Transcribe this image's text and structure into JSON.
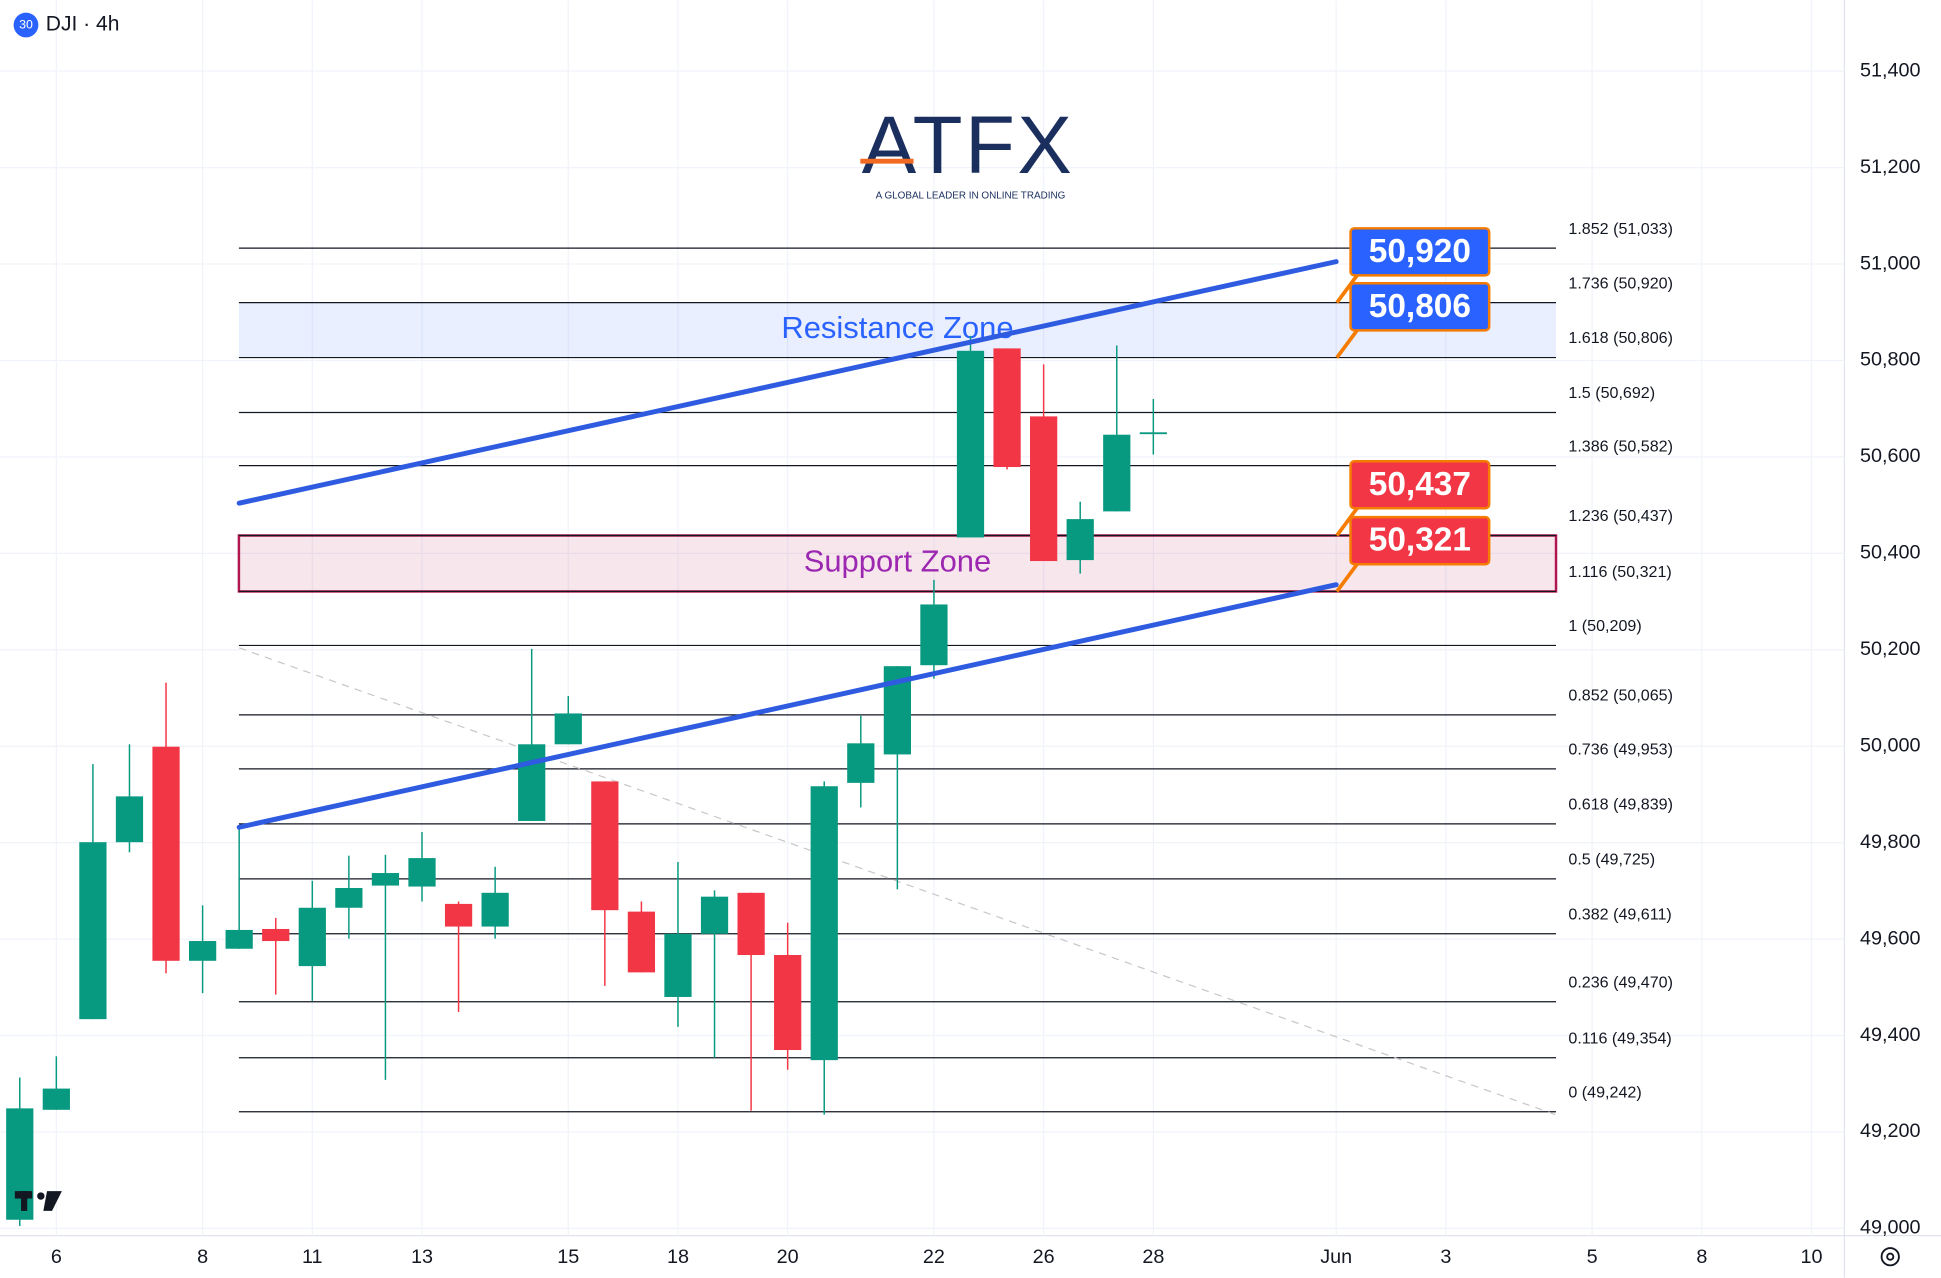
{
  "header": {
    "badge": "30",
    "symbol": "DJI · 4h"
  },
  "logo": {
    "name": "ATFX",
    "tagline": "A GLOBAL LEADER IN ONLINE TRADING"
  },
  "chart_data": {
    "type": "candlestick",
    "categories": [
      null,
      "6",
      null,
      null,
      null,
      "8",
      null,
      null,
      "11",
      null,
      null,
      "13",
      null,
      null,
      null,
      "15",
      null,
      null,
      "18",
      null,
      null,
      "20",
      null,
      null,
      null,
      "22",
      null,
      null,
      "26",
      null,
      null,
      "28",
      null,
      null,
      null,
      null,
      "Jun",
      null,
      null,
      "3",
      null,
      null,
      null,
      "5",
      null,
      null,
      "8",
      null,
      null,
      "10"
    ],
    "open": [
      49018,
      49246,
      49434,
      49801,
      49999,
      49555,
      49580,
      49621,
      49544,
      49665,
      49711,
      49709,
      49673,
      49626,
      49845,
      50004,
      49927,
      49657,
      49480,
      49611,
      49696,
      49567,
      49349,
      49924,
      49983,
      50168,
      50433,
      50825,
      50684,
      50386,
      50487,
      50648,
      null,
      null,
      null,
      null,
      null,
      null,
      null,
      null,
      null,
      null,
      null,
      null,
      null,
      null,
      null,
      null,
      null,
      null
    ],
    "high": [
      49313,
      49357,
      49963,
      50004,
      50132,
      49670,
      49832,
      49644,
      49721,
      49773,
      49775,
      49822,
      49678,
      49750,
      50202,
      50104,
      49927,
      49678,
      49760,
      49701,
      49696,
      49634,
      49927,
      50063,
      50166,
      50345,
      50851,
      50825,
      50792,
      50507,
      50831,
      50720,
      null,
      null,
      null,
      null,
      null,
      null,
      null,
      null,
      null,
      null,
      null,
      null,
      null,
      null,
      null,
      null,
      null,
      null
    ],
    "low": [
      49005,
      49246,
      49434,
      49780,
      49529,
      49488,
      49580,
      49485,
      49472,
      49601,
      49308,
      49678,
      49449,
      49601,
      49845,
      50004,
      49503,
      49531,
      49418,
      49354,
      49244,
      49329,
      49236,
      49873,
      49703,
      50140,
      50433,
      50574,
      50384,
      50358,
      50487,
      50605,
      null,
      null,
      null,
      null,
      null,
      null,
      null,
      null,
      null,
      null,
      null,
      null,
      null,
      null,
      null,
      null,
      null,
      null
    ],
    "close": [
      49249,
      49290,
      49801,
      49896,
      49555,
      49596,
      49619,
      49596,
      49665,
      49706,
      49737,
      49768,
      49626,
      49696,
      50004,
      50068,
      49660,
      49531,
      49611,
      49688,
      49567,
      49370,
      49917,
      50006,
      50166,
      50294,
      50820,
      50579,
      50384,
      50471,
      50646,
      50651,
      null,
      null,
      null,
      null,
      null,
      null,
      null,
      null,
      null,
      null,
      null,
      null,
      null,
      null,
      null,
      null,
      null,
      null
    ],
    "up_color": "#089981",
    "down_color": "#f23645",
    "xlim": [
      -0.5,
      49.9
    ],
    "ylim": [
      48985,
      51547
    ],
    "yticks": [
      {
        "value": 49000,
        "label": "49,000"
      },
      {
        "value": 49200,
        "label": "49,200"
      },
      {
        "value": 49400,
        "label": "49,400"
      },
      {
        "value": 49600,
        "label": "49,600"
      },
      {
        "value": 49800,
        "label": "49,800"
      },
      {
        "value": 50000,
        "label": "50,000"
      },
      {
        "value": 50200,
        "label": "50,200"
      },
      {
        "value": 50400,
        "label": "50,400"
      },
      {
        "value": 50600,
        "label": "50,600"
      },
      {
        "value": 50800,
        "label": "50,800"
      },
      {
        "value": 51000,
        "label": "51,000"
      },
      {
        "value": 51200,
        "label": "51,200"
      },
      {
        "value": 51400,
        "label": "51,400"
      }
    ],
    "fib_levels": [
      {
        "value": 51033,
        "label": "1.852 (51,033)"
      },
      {
        "value": 50920,
        "label": "1.736 (50,920)"
      },
      {
        "value": 50806,
        "label": "1.618 (50,806)"
      },
      {
        "value": 50692,
        "label": "1.5 (50,692)"
      },
      {
        "value": 50582,
        "label": "1.386 (50,582)"
      },
      {
        "value": 50437,
        "label": "1.236 (50,437)"
      },
      {
        "value": 50321,
        "label": "1.116 (50,321)"
      },
      {
        "value": 50209,
        "label": "1 (50,209)"
      },
      {
        "value": 50065,
        "label": "0.852 (50,065)"
      },
      {
        "value": 49953,
        "label": "0.736 (49,953)"
      },
      {
        "value": 49839,
        "label": "0.618 (49,839)"
      },
      {
        "value": 49725,
        "label": "0.5 (49,725)"
      },
      {
        "value": 49611,
        "label": "0.382 (49,611)"
      },
      {
        "value": 49470,
        "label": "0.236 (49,470)"
      },
      {
        "value": 49354,
        "label": "0.116 (49,354)"
      },
      {
        "value": 49242,
        "label": "0 (49,242)"
      }
    ],
    "zones": [
      {
        "label": "Resistance Zone",
        "range": [
          50806,
          50920
        ],
        "color": "#2962ff"
      },
      {
        "label": "Support Zone",
        "range": [
          50321,
          50437
        ],
        "color": "#b0174e"
      }
    ],
    "price_tags": [
      {
        "label": "50,920",
        "value": 50920,
        "color": "#2962ff"
      },
      {
        "label": "50,806",
        "value": 50806,
        "color": "#2962ff"
      },
      {
        "label": "50,437",
        "value": 50437,
        "color": "#f23645"
      },
      {
        "label": "50,321",
        "value": 50321,
        "color": "#f23645"
      }
    ],
    "trend_lines": [
      {
        "x": [
          6,
          36
        ],
        "y": [
          50504,
          51005
        ],
        "color": "#2e5be0"
      },
      {
        "x": [
          6,
          36
        ],
        "y": [
          49832,
          50335
        ],
        "color": "#2e5be0"
      }
    ],
    "dashed_line": {
      "x": [
        6,
        42
      ],
      "y": [
        50204,
        49236
      ]
    }
  }
}
